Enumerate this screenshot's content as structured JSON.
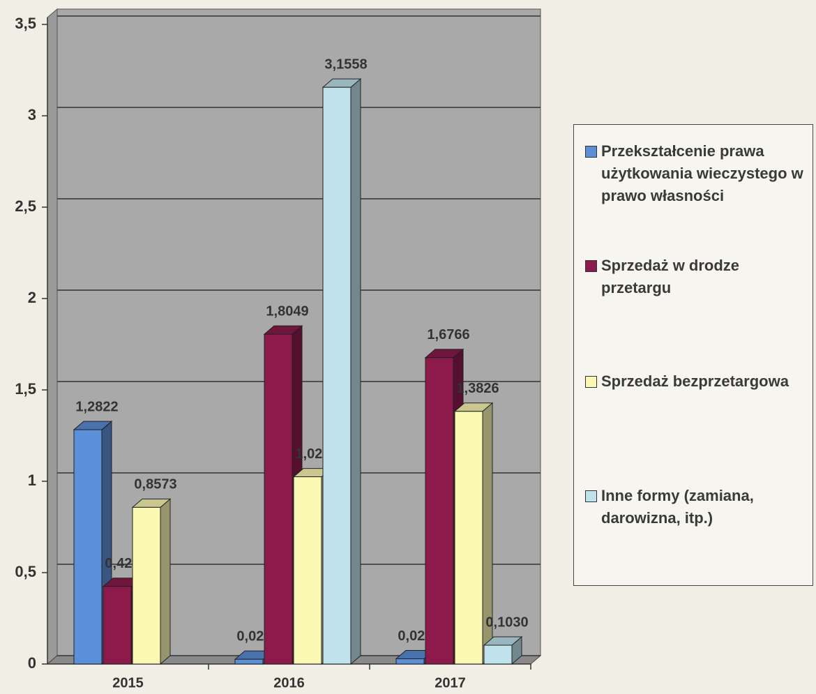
{
  "chart_data": {
    "type": "bar3d",
    "categories": [
      "2015",
      "2016",
      "2017"
    ],
    "series": [
      {
        "name": "Przekształcenie prawa użytkowania wieczystego w prawo własności",
        "color": "#5b8fd8",
        "values": [
          1.2822,
          0.0259,
          0.0286
        ],
        "value_labels": [
          "1,2822",
          "0,0259",
          "0,0286"
        ]
      },
      {
        "name": "Sprzedaż w drodze przetargu",
        "color": "#8c1b4c",
        "values": [
          0.4245,
          1.8049,
          1.6766
        ],
        "value_labels": [
          "0,4245",
          "1,8049",
          "1,6766"
        ]
      },
      {
        "name": "Sprzedaż bezprzetargowa",
        "color": "#fbf8b4",
        "values": [
          0.8573,
          1.0245,
          1.3826
        ],
        "value_labels": [
          "0,8573",
          "1,0245",
          "1,3826"
        ]
      },
      {
        "name": "Inne formy (zamiana, darowizna, itp.)",
        "color": "#bfe2ec",
        "values": [
          null,
          3.1558,
          0.103
        ],
        "value_labels": [
          null,
          "3,1558",
          "0,1030"
        ]
      }
    ],
    "ylim": [
      0,
      3.5
    ],
    "yticks": [
      0,
      {
        "value": 0.5,
        "label": "0,5"
      },
      1,
      {
        "value": 1.5,
        "label": "1,5"
      },
      2,
      {
        "value": 2.5,
        "label": "2,5"
      },
      3,
      {
        "value": 3.5,
        "label": "3,5"
      }
    ],
    "grid": true
  }
}
